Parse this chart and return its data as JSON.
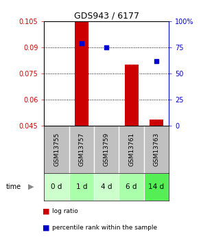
{
  "title": "GDS943 / 6177",
  "samples": [
    "GSM13755",
    "GSM13757",
    "GSM13759",
    "GSM13761",
    "GSM13763"
  ],
  "time_labels": [
    "0 d",
    "1 d",
    "4 d",
    "6 d",
    "14 d"
  ],
  "time_colors": [
    "#ccffcc",
    "#aaffaa",
    "#ccffcc",
    "#aaffaa",
    "#55ee55"
  ],
  "log_ratio": [
    0.045,
    0.1045,
    0.045,
    0.08,
    0.0485
  ],
  "baseline": 0.045,
  "percentile": [
    null,
    79.0,
    75.0,
    null,
    62.0
  ],
  "ylim_left": [
    0.045,
    0.105
  ],
  "ylim_right": [
    0,
    100
  ],
  "yticks_left": [
    0.045,
    0.06,
    0.075,
    0.09,
    0.105
  ],
  "yticks_right": [
    0,
    25,
    50,
    75,
    100
  ],
  "bar_color": "#cc0000",
  "dot_color": "#0000cc",
  "bar_width": 0.55,
  "background_color": "#ffffff",
  "plot_bg": "#ffffff",
  "sample_bg": "#c0c0c0",
  "legend_items": [
    "log ratio",
    "percentile rank within the sample"
  ]
}
